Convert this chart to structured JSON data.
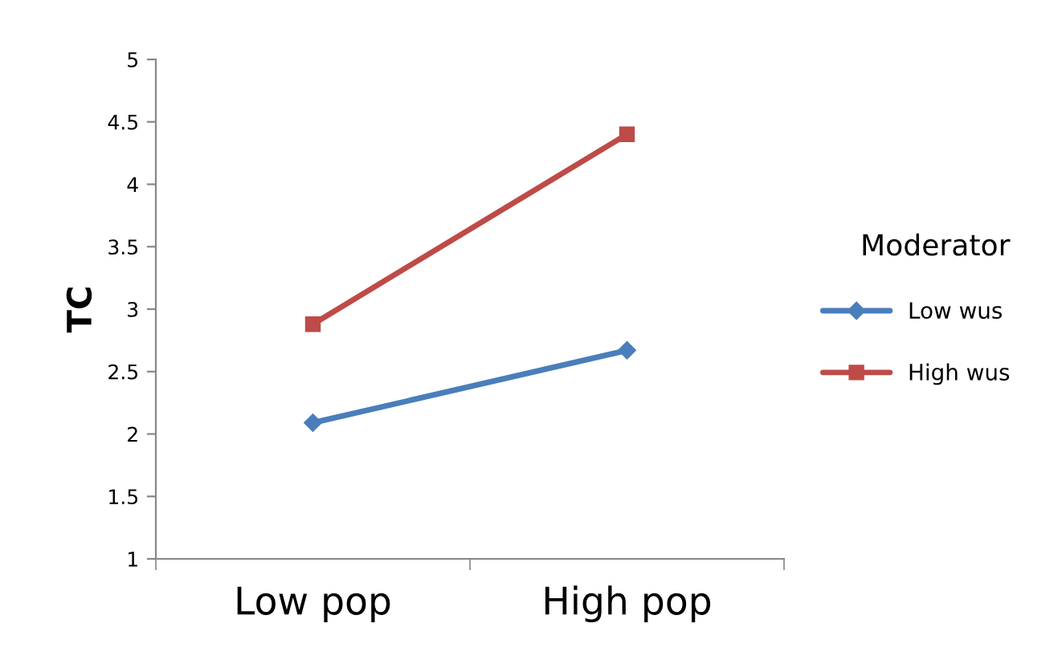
{
  "chart_data": {
    "type": "line",
    "ylabel": "TC",
    "legend_title": "Moderator",
    "categories": [
      "Low pop",
      "High pop"
    ],
    "series": [
      {
        "name": "Low wus",
        "color": "#4a7ebb",
        "values": [
          2.09,
          2.67
        ],
        "marker": "diamond"
      },
      {
        "name": "High wus",
        "color": "#be4b48",
        "values": [
          2.88,
          4.4
        ],
        "marker": "square"
      }
    ],
    "ylim": [
      1,
      5
    ],
    "yticks": [
      1,
      1.5,
      2,
      2.5,
      3,
      3.5,
      4,
      4.5,
      5
    ],
    "grid": false,
    "legend": "right",
    "line_style": "solid"
  }
}
